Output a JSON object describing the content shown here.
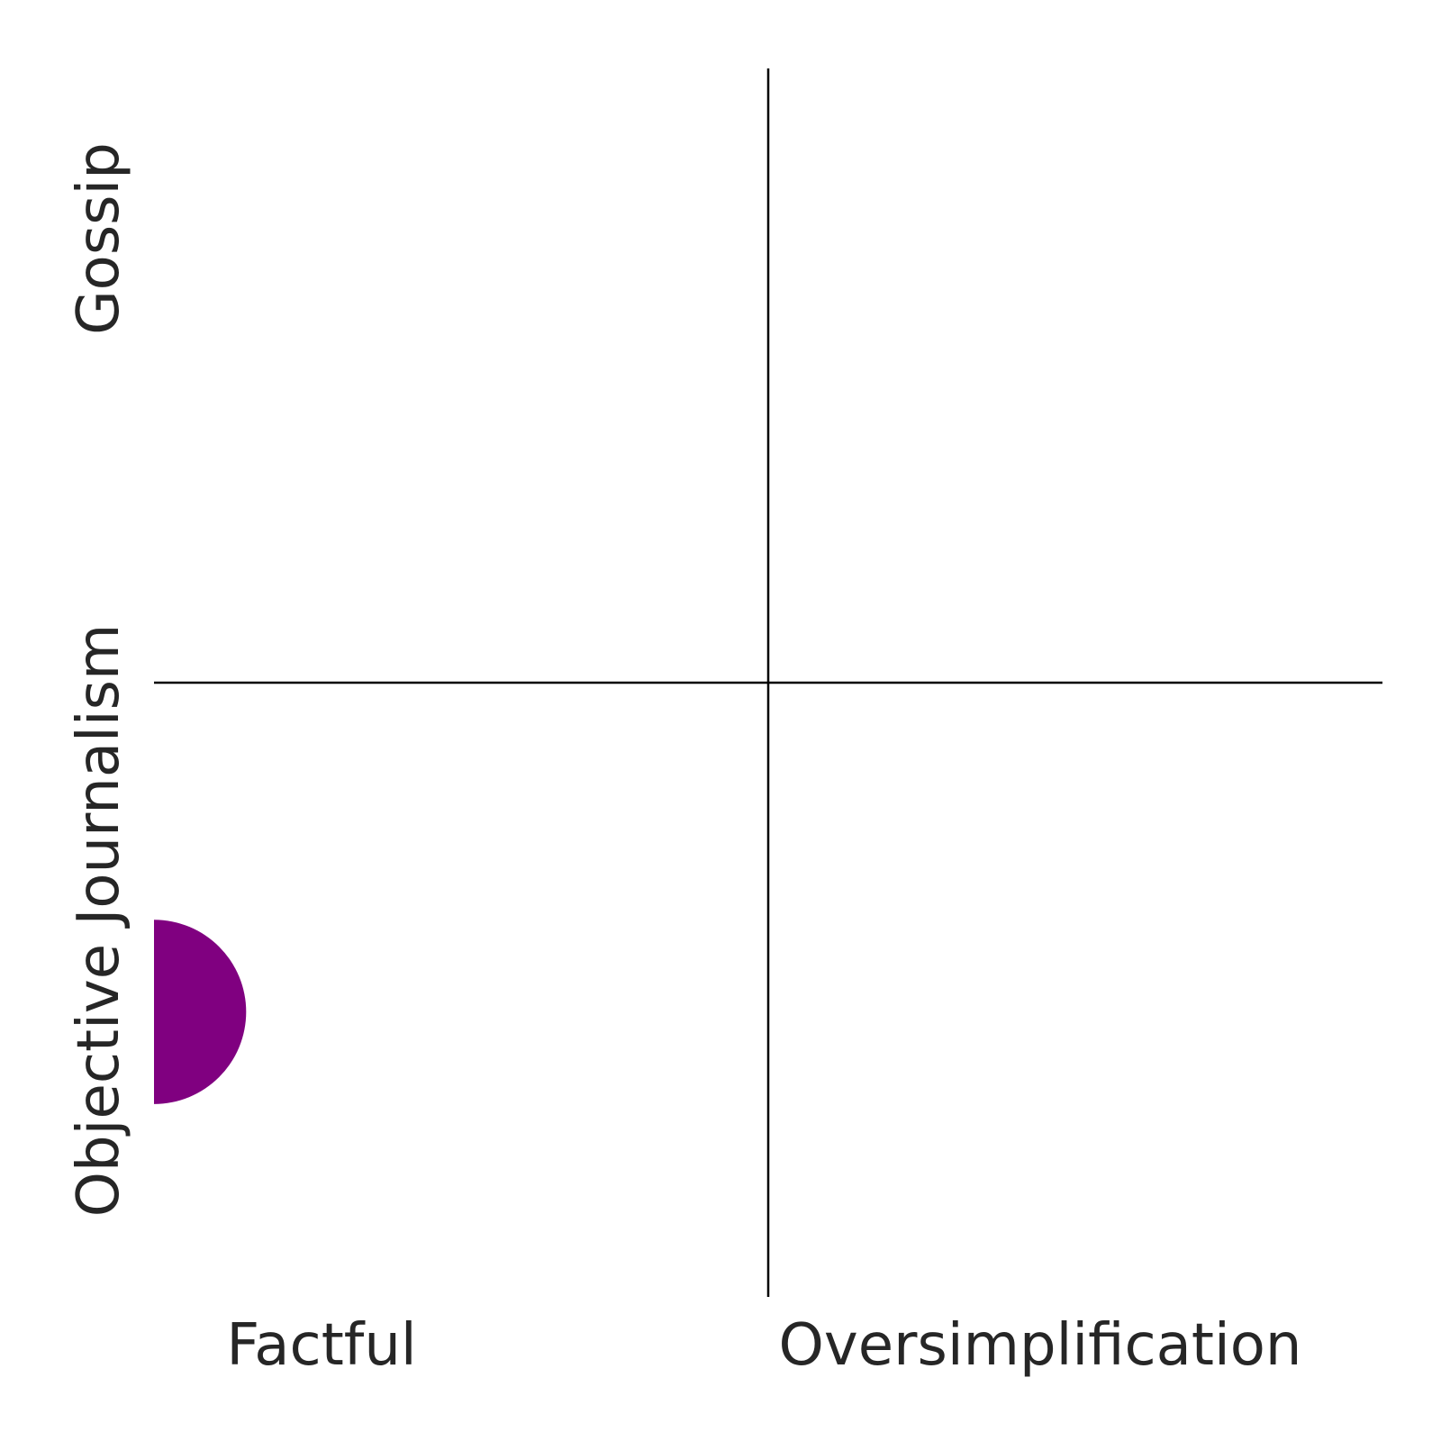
{
  "chart_data": {
    "type": "scatter",
    "title": "",
    "x_labels": [
      "Factful",
      "Oversimplification"
    ],
    "y_labels": [
      "Objective Journalism",
      "Gossip"
    ],
    "xlim": [
      -1,
      1
    ],
    "ylim": [
      -1,
      1
    ],
    "grid": false,
    "quadrant_lines": {
      "x": 0,
      "y": 0
    },
    "points": [
      {
        "x": -1,
        "y": -0.536,
        "size": 0.15,
        "color": "#800080"
      }
    ]
  }
}
